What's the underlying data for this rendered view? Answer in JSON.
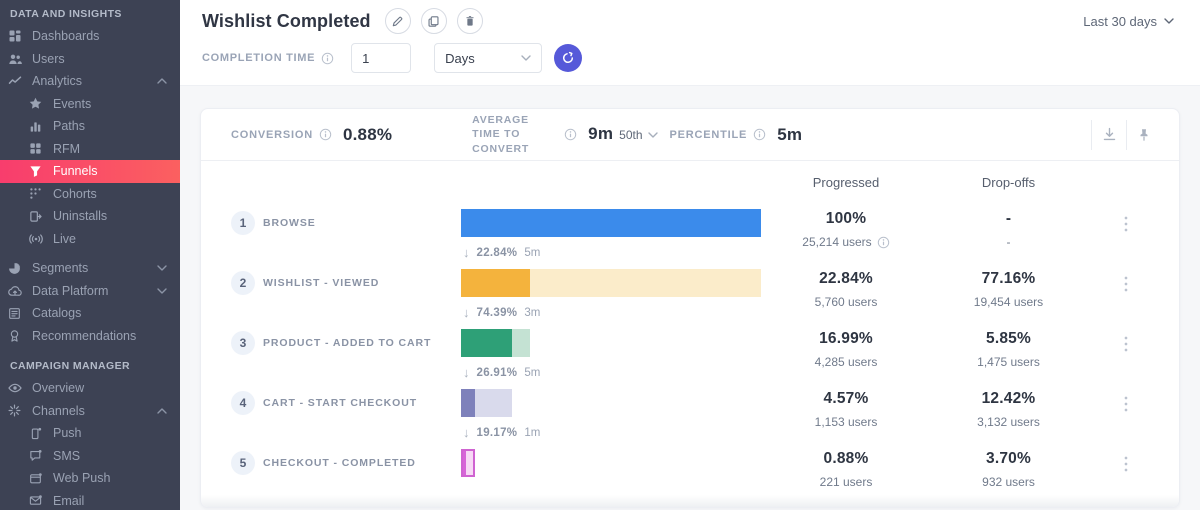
{
  "sidebar": {
    "sections": [
      {
        "header": "DATA AND INSIGHTS",
        "items": [
          {
            "label": "Dashboards",
            "icon": "dashboards-icon"
          },
          {
            "label": "Users",
            "icon": "users-icon"
          },
          {
            "label": "Analytics",
            "icon": "analytics-icon",
            "chevron": "up"
          },
          {
            "label": "Events",
            "icon": "events-icon",
            "sub": true
          },
          {
            "label": "Paths",
            "icon": "paths-icon",
            "sub": true
          },
          {
            "label": "RFM",
            "icon": "rfm-icon",
            "sub": true
          },
          {
            "label": "Funnels",
            "icon": "funnels-icon",
            "sub": true,
            "active": true
          },
          {
            "label": "Cohorts",
            "icon": "cohorts-icon",
            "sub": true
          },
          {
            "label": "Uninstalls",
            "icon": "uninstalls-icon",
            "sub": true
          },
          {
            "label": "Live",
            "icon": "live-icon",
            "sub": true
          },
          {
            "label": "Segments",
            "icon": "segments-icon",
            "chevron": "down",
            "gap": true
          },
          {
            "label": "Data Platform",
            "icon": "data-platform-icon",
            "chevron": "down"
          },
          {
            "label": "Catalogs",
            "icon": "catalogs-icon"
          },
          {
            "label": "Recommendations",
            "icon": "recommendations-icon"
          }
        ]
      },
      {
        "header": "CAMPAIGN MANAGER",
        "items": [
          {
            "label": "Overview",
            "icon": "overview-icon"
          },
          {
            "label": "Channels",
            "icon": "channels-icon",
            "chevron": "up"
          },
          {
            "label": "Push",
            "icon": "push-icon",
            "sub": true
          },
          {
            "label": "SMS",
            "icon": "sms-icon",
            "sub": true
          },
          {
            "label": "Web Push",
            "icon": "web-push-icon",
            "sub": true
          },
          {
            "label": "Email",
            "icon": "email-icon",
            "sub": true
          }
        ]
      }
    ]
  },
  "header": {
    "title": "Wishlist Completed",
    "date_range": "Last 30 days"
  },
  "controls": {
    "completion_time_label": "COMPLETION TIME",
    "completion_time_value": "1",
    "completion_time_unit": "Days"
  },
  "stats": {
    "conversion_label": "CONVERSION",
    "conversion_value": "0.88%",
    "avg_time_label": "AVERAGE TIME TO CONVERT",
    "avg_time_value": "9m",
    "percentile_selector": "50th",
    "percentile_label": "PERCENTILE",
    "percentile_value": "5m"
  },
  "table": {
    "progressed_header": "Progressed",
    "dropoffs_header": "Drop-offs"
  },
  "colors": {
    "sidebar_bg": "#3d4254",
    "active_gradient_left": "#f83d6d",
    "active_gradient_right": "#fb6060",
    "accent_button": "#5659d9",
    "bar_blue": "#3b8beb",
    "bar_yellow": "#f4b33d",
    "bar_yellow_light": "#fbecca",
    "bar_green": "#2ea077",
    "bar_green_light": "#c4e2d3",
    "bar_purple": "#7e81bb",
    "bar_purple_light": "#d9daec",
    "bar_pink": "#d765d8",
    "bar_pink_light": "#f7d9f5",
    "bar_pink_border": "#cf63d1"
  },
  "funnel": {
    "steps": [
      {
        "num": "1",
        "label": "BROWSE",
        "progressed_pct": "100%",
        "progressed_users": "25,214 users",
        "progressed_info": true,
        "dropoff_pct": "-",
        "dropoff_users": "-",
        "bar": {
          "total_pct": 100,
          "filled_pct": 100,
          "fill": "#3b8beb",
          "rest": "#3b8beb"
        }
      },
      {
        "num": "2",
        "label": "WISHLIST - VIEWED",
        "connector": {
          "pct": "22.84%",
          "time": "5m"
        },
        "progressed_pct": "22.84%",
        "progressed_users": "5,760 users",
        "dropoff_pct": "77.16%",
        "dropoff_users": "19,454 users",
        "bar": {
          "total_pct": 100,
          "filled_pct": 22.84,
          "fill": "#f4b33d",
          "rest": "#fbecca"
        }
      },
      {
        "num": "3",
        "label": "PRODUCT - ADDED TO CART",
        "connector": {
          "pct": "74.39%",
          "time": "3m"
        },
        "progressed_pct": "16.99%",
        "progressed_users": "4,285 users",
        "dropoff_pct": "5.85%",
        "dropoff_users": "1,475 users",
        "bar": {
          "total_pct": 22.84,
          "filled_pct": 16.99,
          "fill": "#2ea077",
          "rest": "#c4e2d3"
        }
      },
      {
        "num": "4",
        "label": "CART - START CHECKOUT",
        "connector": {
          "pct": "26.91%",
          "time": "5m"
        },
        "progressed_pct": "4.57%",
        "progressed_users": "1,153 users",
        "dropoff_pct": "12.42%",
        "dropoff_users": "3,132 users",
        "bar": {
          "total_pct": 16.99,
          "filled_pct": 4.57,
          "fill": "#7e81bb",
          "rest": "#d9daec"
        }
      },
      {
        "num": "5",
        "label": "CHECKOUT - COMPLETED",
        "connector": {
          "pct": "19.17%",
          "time": "1m"
        },
        "progressed_pct": "0.88%",
        "progressed_users": "221 users",
        "dropoff_pct": "3.70%",
        "dropoff_users": "932 users",
        "bar": {
          "total_pct": 4.57,
          "filled_pct": 0.88,
          "fill": "#d765d8",
          "rest": "#f7d9f5",
          "border": "#cf63d1"
        }
      }
    ]
  }
}
